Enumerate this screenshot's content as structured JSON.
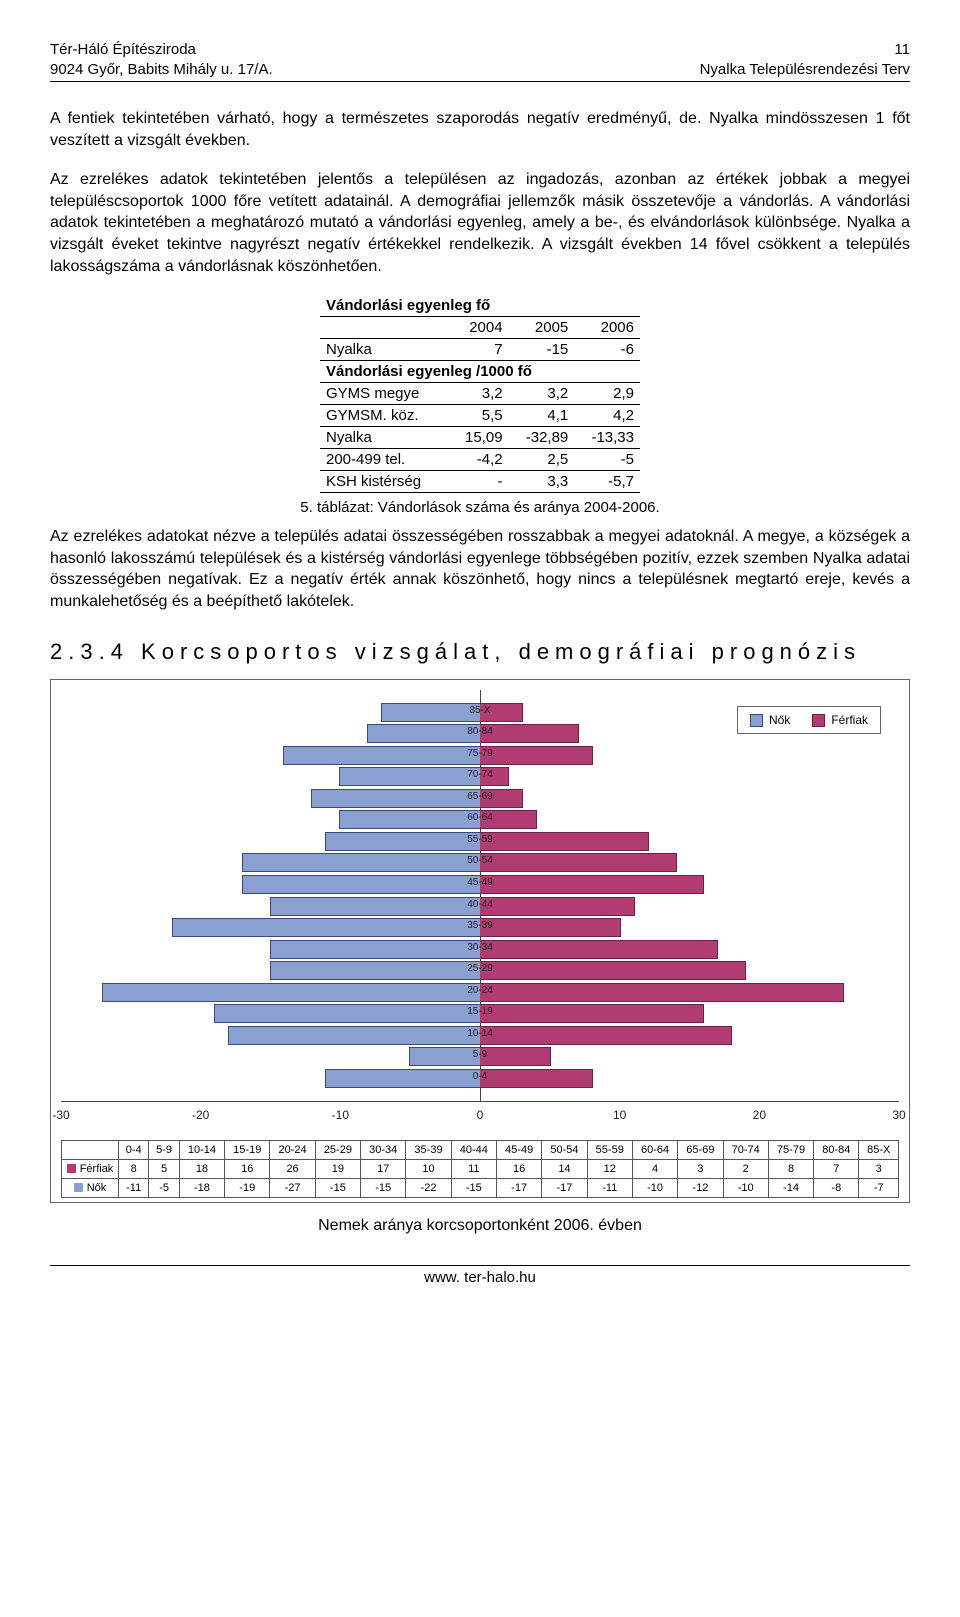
{
  "header": {
    "org": "Tér-Háló Építésziroda",
    "addr": "9024 Győr, Babits Mihály u. 17/A.",
    "doc": "Nyalka Településrendezési Terv",
    "page": "11"
  },
  "para1": "A fentiek tekintetében várható, hogy a természetes szaporodás negatív eredményű, de. Nyalka mindösszesen 1 főt veszített a vizsgált években.",
  "para2": "Az ezrelékes adatok tekintetében jelentős a településen az ingadozás, azonban az értékek jobbak a megyei településcsoportok 1000 főre vetített adatainál. A demográfiai jellemzők másik összetevője a vándorlás. A vándorlási adatok tekintetében a meghatározó mutató a vándorlási egyenleg, amely a be-, és elvándorlások különbsége. Nyalka a vizsgált éveket tekintve nagyrészt negatív értékekkel rendelkezik. A vizsgált években 14 fővel csökkent a település lakosságszáma a vándorlásnak köszönhetően.",
  "table5": {
    "head1": "Vándorlási egyenleg fő",
    "years": [
      "2004",
      "2005",
      "2006"
    ],
    "row_nyalka": {
      "label": "Nyalka",
      "vals": [
        "7",
        "-15",
        "-6"
      ]
    },
    "head2": "Vándorlási egyenleg /1000 fő",
    "rows": [
      {
        "label": "GYMS megye",
        "vals": [
          "3,2",
          "3,2",
          "2,9"
        ]
      },
      {
        "label": "GYMSM. köz.",
        "vals": [
          "5,5",
          "4,1",
          "4,2"
        ]
      },
      {
        "label": "Nyalka",
        "vals": [
          "15,09",
          "-32,89",
          "-13,33"
        ]
      },
      {
        "label": "200-499 tel.",
        "vals": [
          "-4,2",
          "2,5",
          "-5"
        ]
      },
      {
        "label": "KSH kistérség",
        "vals": [
          "-",
          "3,3",
          "-5,7"
        ]
      }
    ],
    "caption": "5. táblázat: Vándorlások száma és aránya 2004-2006."
  },
  "para3": "Az ezrelékes adatokat nézve a település adatai összességében rosszabbak a megyei adatoknál. A megye, a községek a hasonló lakosszámú települések és a kistérség vándorlási egyenlege többségében pozitív, ezzek szemben Nyalka adatai összességében negatívak. Ez a negatív érték annak köszönhető, hogy nincs a településnek megtartó ereje, kevés a munkalehetőség és a beépíthető lakótelek.",
  "section": "2.3.4   Korcsoportos vizsgálat, demográfiai prognózis",
  "pyramid": {
    "type": "population-pyramid",
    "x_min": -30,
    "x_max": 30,
    "x_ticks": [
      -30,
      -20,
      -10,
      0,
      10,
      20,
      30
    ],
    "left_color": "#8aa0d0",
    "left_border": "#3a4a7a",
    "right_color": "#b13c72",
    "right_border": "#6c2147",
    "background": "#ffffff",
    "label_fontsize": 10,
    "groups": [
      "0-4",
      "5-9",
      "10-14",
      "15-19",
      "20-24",
      "25-29",
      "30-34",
      "35-39",
      "40-44",
      "45-49",
      "50-54",
      "55-59",
      "60-64",
      "65-69",
      "70-74",
      "75-79",
      "80-84",
      "85-X"
    ],
    "ferfiak": [
      8,
      5,
      18,
      16,
      26,
      19,
      17,
      10,
      11,
      16,
      14,
      12,
      4,
      3,
      2,
      8,
      7,
      3
    ],
    "nok": [
      -11,
      -5,
      -18,
      -19,
      -27,
      -15,
      -15,
      -22,
      -15,
      -17,
      -17,
      -11,
      -10,
      -12,
      -10,
      -14,
      -8,
      -7
    ],
    "legend": {
      "nok": "Nők",
      "ferfiak": "Férfiak"
    },
    "row_headers": {
      "ferfiak": "Férfiak",
      "nok": "Nők"
    },
    "caption": "Nemek aránya korcsoportonként 2006. évben"
  },
  "footer": "www. ter-halo.hu"
}
